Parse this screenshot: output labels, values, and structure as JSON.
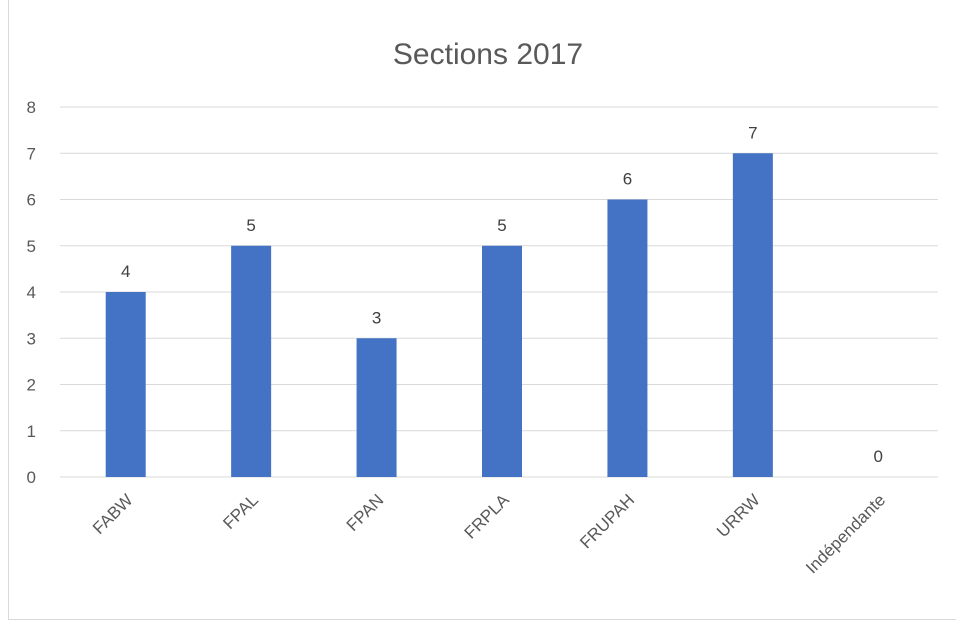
{
  "chart_data": {
    "type": "bar",
    "title": "Sections 2017",
    "categories": [
      "FABW",
      "FPAL",
      "FPAN",
      "FRPLA",
      "FRUPAH",
      "URRW",
      "Indépendante"
    ],
    "series": [
      {
        "values": [
          4,
          5,
          3,
          5,
          6,
          7,
          0
        ]
      }
    ],
    "ylim": [
      0,
      8
    ],
    "yticks": [
      0,
      1,
      2,
      3,
      4,
      5,
      6,
      7,
      8
    ],
    "grid": true,
    "data_labels": true,
    "bar_color": "#4472c4",
    "grid_color": "#d9d9d9"
  }
}
